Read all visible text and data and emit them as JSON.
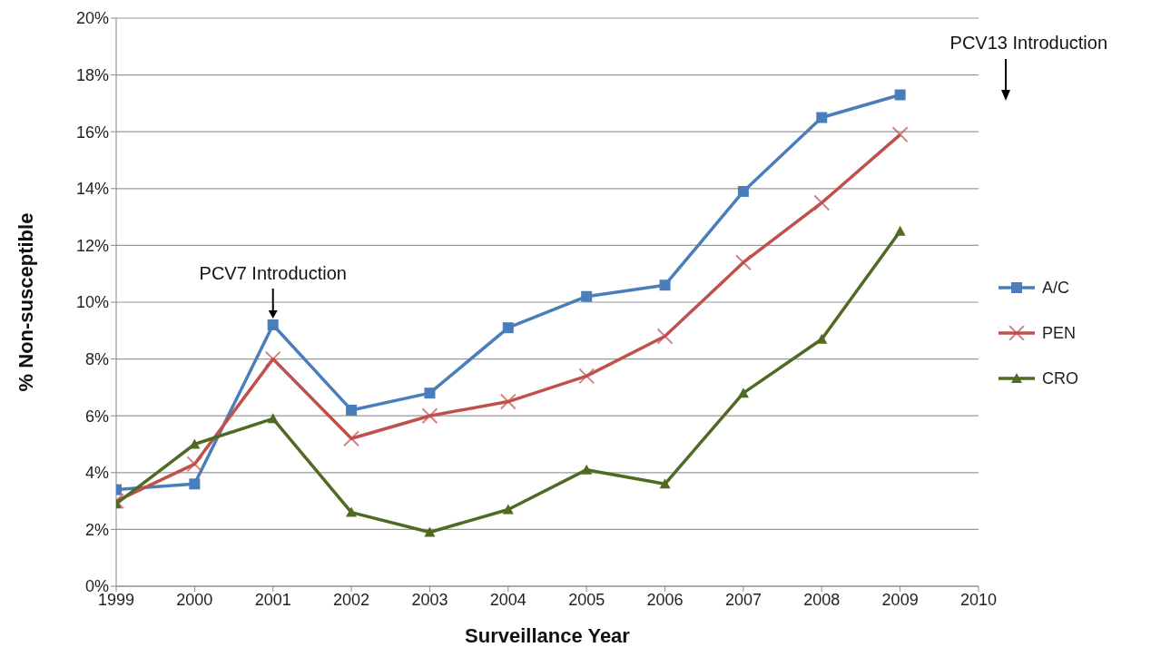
{
  "chart_data": {
    "type": "line",
    "xlabel": "Surveillance Year",
    "ylabel": "% Non-susceptible",
    "x": [
      1999,
      2000,
      2001,
      2002,
      2003,
      2004,
      2005,
      2006,
      2007,
      2008,
      2009
    ],
    "series": [
      {
        "name": "A/C",
        "color": "#4a7ebb",
        "marker": "square",
        "values": [
          3.4,
          3.6,
          9.2,
          6.2,
          6.8,
          9.1,
          10.2,
          10.6,
          13.9,
          16.5,
          17.3
        ]
      },
      {
        "name": "PEN",
        "color": "#c0504d",
        "marker": "cross",
        "values": [
          3.0,
          4.3,
          8.0,
          5.2,
          6.0,
          6.5,
          7.4,
          8.8,
          11.4,
          13.5,
          15.9
        ]
      },
      {
        "name": "CRO",
        "color": "#4f6a23",
        "marker": "triangle",
        "values": [
          2.9,
          5.0,
          5.9,
          2.6,
          1.9,
          2.7,
          4.1,
          3.6,
          6.8,
          8.7,
          12.5
        ]
      }
    ],
    "xlim": [
      1999,
      2010
    ],
    "xticks": [
      1999,
      2000,
      2001,
      2002,
      2003,
      2004,
      2005,
      2006,
      2007,
      2008,
      2009,
      2010
    ],
    "ylim": [
      0,
      20
    ],
    "yticks": [
      {
        "value": 0,
        "label": "0%"
      },
      {
        "value": 2,
        "label": "2%"
      },
      {
        "value": 4,
        "label": "4%"
      },
      {
        "value": 6,
        "label": "6%"
      },
      {
        "value": 8,
        "label": "8%"
      },
      {
        "value": 10,
        "label": "10%"
      },
      {
        "value": 12,
        "label": "12%"
      },
      {
        "value": 14,
        "label": "14%"
      },
      {
        "value": 16,
        "label": "16%"
      },
      {
        "value": 18,
        "label": "18%"
      },
      {
        "value": 20,
        "label": "20%"
      }
    ],
    "grid": "y",
    "legend": "right",
    "line_style": "solid",
    "annotations": [
      {
        "text": "PCV7 Introduction",
        "x": 2001,
        "y": 9.2
      },
      "PCV13 Introduction"
    ]
  }
}
